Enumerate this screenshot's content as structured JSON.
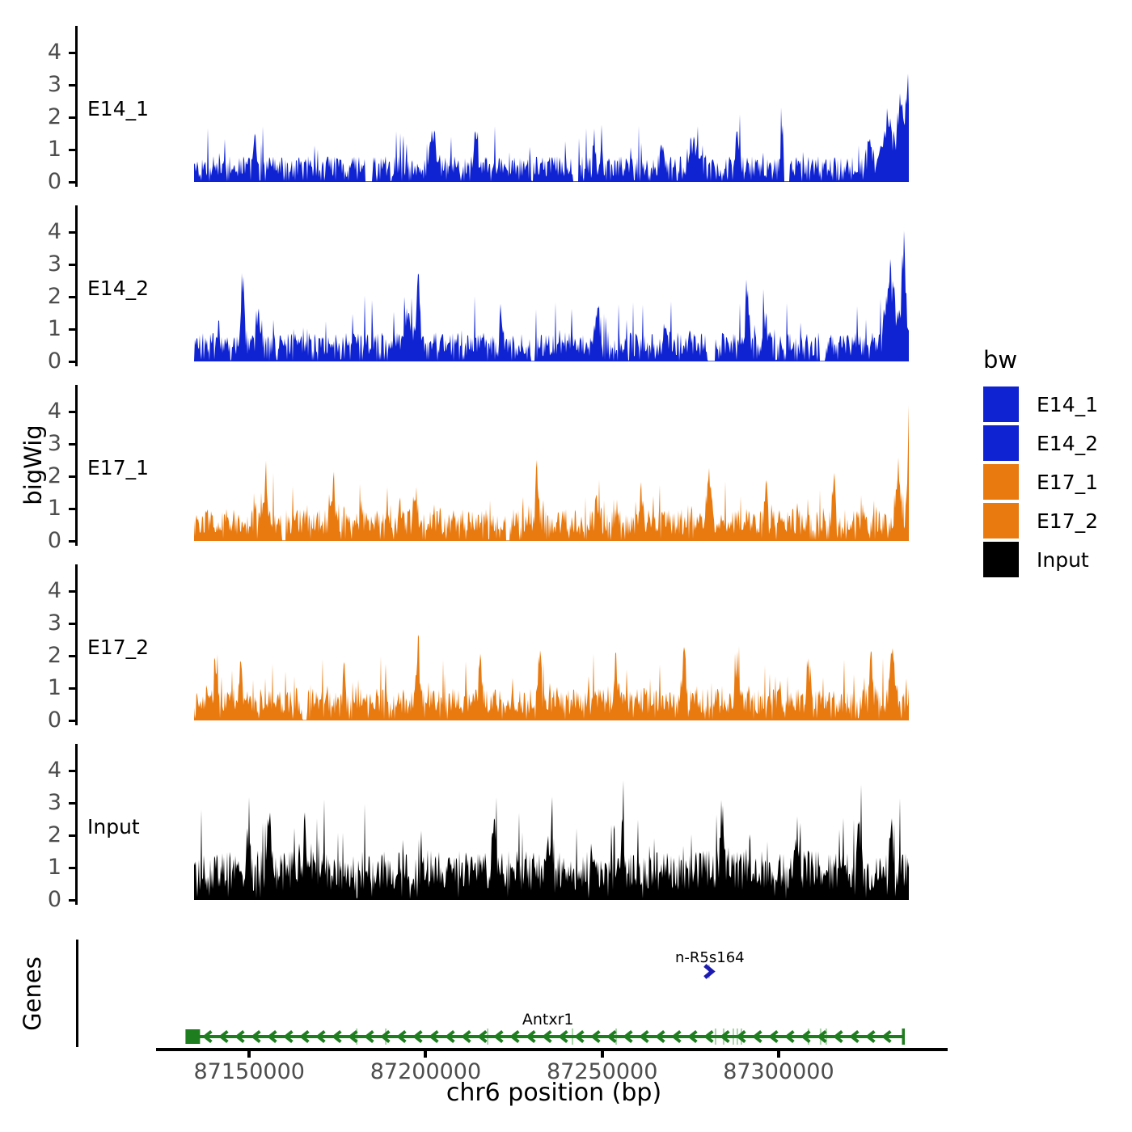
{
  "labels": {
    "y_axis": "bigWig",
    "x_axis": "chr6 position (bp)",
    "genes_axis": "Genes"
  },
  "legend": {
    "title": "bw",
    "items": [
      {
        "label": "E14_1",
        "color": "#0f23d2"
      },
      {
        "label": "E14_2",
        "color": "#0f23d2"
      },
      {
        "label": "E17_1",
        "color": "#e87a10"
      },
      {
        "label": "E17_2",
        "color": "#e87a10"
      },
      {
        "label": "Input",
        "color": "#000000"
      }
    ]
  },
  "colors": {
    "axis": "#000000",
    "tick_text": "#4d4d4d",
    "gene_green": "#1e7d1e",
    "exon_light_green": "#aad4aa",
    "gene_navy": "#1b1bb0",
    "background": "#ffffff"
  },
  "chart_data": {
    "type": "area",
    "title": "",
    "xlabel": "chr6 position (bp)",
    "ylabel": "bigWig",
    "x_domain": [
      87123600,
      87347900
    ],
    "signal_x_range": [
      87134350,
      87337150
    ],
    "x_ticks": [
      {
        "pos": 87150000,
        "label": "87150000"
      },
      {
        "pos": 87200000,
        "label": "87200000"
      },
      {
        "pos": 87250000,
        "label": "87250000"
      },
      {
        "pos": 87300000,
        "label": "87300000"
      }
    ],
    "y_ticks": [
      0,
      1,
      2,
      3,
      4
    ],
    "ylim": [
      0,
      4.7
    ],
    "grid": false,
    "legend_position": "right",
    "tracks": [
      {
        "name": "E14_1",
        "color": "#0f23d2",
        "ymax": 4.45,
        "seed": 42,
        "base": 0.8,
        "dip_prob": 0.12,
        "spike_prob": 0.1,
        "spike_max": 1.2,
        "peak_value": 4.3,
        "features": [
          {
            "p": 0.085,
            "h": 1.0,
            "w": 2
          },
          {
            "p": 0.335,
            "h": 1.0,
            "w": 5
          },
          {
            "p": 0.395,
            "h": 1.6,
            "w": 2
          },
          {
            "p": 0.56,
            "h": 1.1,
            "w": 2
          },
          {
            "p": 0.655,
            "h": 1.2,
            "w": 2
          },
          {
            "p": 0.7,
            "h": 1.0,
            "w": 6
          },
          {
            "p": 0.76,
            "h": 1.3,
            "w": 2
          },
          {
            "p": 0.823,
            "h": 1.1,
            "w": 2
          },
          {
            "p": 0.945,
            "h": 0.9,
            "w": 3
          },
          {
            "p": 0.972,
            "h": 2.0,
            "w": 6
          },
          {
            "p": 0.988,
            "h": 2.6,
            "w": 3
          },
          {
            "p": 0.998,
            "h": 3.5,
            "w": 2.5
          }
        ],
        "gaps": [
          {
            "p": 0.245,
            "w": 4
          },
          {
            "p": 0.535,
            "w": 3
          },
          {
            "p": 0.83,
            "w": 3
          }
        ]
      },
      {
        "name": "E14_2",
        "color": "#0f23d2",
        "ymax": 4.3,
        "seed": 7,
        "base": 0.9,
        "dip_prob": 0.11,
        "spike_prob": 0.1,
        "spike_max": 1.4,
        "peak_value": 4.1,
        "features": [
          {
            "p": 0.068,
            "h": 2.3,
            "w": 2
          },
          {
            "p": 0.09,
            "h": 1.2,
            "w": 3
          },
          {
            "p": 0.3,
            "h": 1.0,
            "w": 6
          },
          {
            "p": 0.314,
            "h": 2.2,
            "w": 2
          },
          {
            "p": 0.43,
            "h": 1.2,
            "w": 2
          },
          {
            "p": 0.565,
            "h": 1.2,
            "w": 3
          },
          {
            "p": 0.66,
            "h": 1.3,
            "w": 2
          },
          {
            "p": 0.774,
            "h": 2.2,
            "w": 2
          },
          {
            "p": 0.8,
            "h": 1.0,
            "w": 4
          },
          {
            "p": 0.975,
            "h": 2.2,
            "w": 6
          },
          {
            "p": 0.993,
            "h": 3.1,
            "w": 3
          }
        ],
        "gaps": [
          {
            "p": 0.475,
            "w": 2
          },
          {
            "p": 0.725,
            "w": 4
          },
          {
            "p": 0.88,
            "w": 3
          }
        ]
      },
      {
        "name": "E17_1",
        "color": "#e87a10",
        "ymax": 4.6,
        "seed": 13,
        "base": 1.0,
        "dip_prob": 0.06,
        "spike_prob": 0.12,
        "spike_max": 1.2,
        "peak_value": 4.6,
        "features": [
          {
            "p": 0.1,
            "h": 1.3,
            "w": 2
          },
          {
            "p": 0.195,
            "h": 1.5,
            "w": 2
          },
          {
            "p": 0.31,
            "h": 1.3,
            "w": 2
          },
          {
            "p": 0.48,
            "h": 1.7,
            "w": 2
          },
          {
            "p": 0.565,
            "h": 1.3,
            "w": 2
          },
          {
            "p": 0.625,
            "h": 1.5,
            "w": 2
          },
          {
            "p": 0.72,
            "h": 1.5,
            "w": 3
          },
          {
            "p": 0.8,
            "h": 1.3,
            "w": 2
          },
          {
            "p": 0.895,
            "h": 1.4,
            "w": 2
          },
          {
            "p": 0.985,
            "h": 1.8,
            "w": 3
          },
          {
            "p": 1.0,
            "h": 4.0,
            "w": 1.8
          }
        ],
        "gaps": [
          {
            "p": 0.126,
            "w": 2
          },
          {
            "p": 0.44,
            "w": 2
          }
        ]
      },
      {
        "name": "E17_2",
        "color": "#e87a10",
        "ymax": 4.0,
        "seed": 99,
        "base": 1.0,
        "dip_prob": 0.06,
        "spike_prob": 0.12,
        "spike_max": 1.4,
        "peak_value": 3.7,
        "features": [
          {
            "p": 0.03,
            "h": 1.5,
            "w": 2
          },
          {
            "p": 0.065,
            "h": 1.5,
            "w": 2
          },
          {
            "p": 0.21,
            "h": 1.3,
            "w": 2
          },
          {
            "p": 0.313,
            "h": 2.6,
            "w": 2
          },
          {
            "p": 0.4,
            "h": 1.5,
            "w": 2
          },
          {
            "p": 0.484,
            "h": 1.8,
            "w": 2
          },
          {
            "p": 0.59,
            "h": 1.4,
            "w": 2
          },
          {
            "p": 0.685,
            "h": 1.8,
            "w": 2
          },
          {
            "p": 0.76,
            "h": 1.4,
            "w": 2
          },
          {
            "p": 0.86,
            "h": 1.3,
            "w": 2
          },
          {
            "p": 0.947,
            "h": 1.9,
            "w": 2
          },
          {
            "p": 0.977,
            "h": 1.9,
            "w": 3
          }
        ],
        "gaps": [
          {
            "p": 0.155,
            "w": 2
          }
        ]
      },
      {
        "name": "Input",
        "color": "#000000",
        "ymax": 4.55,
        "seed": 5,
        "base": 1.55,
        "dip_prob": 0.03,
        "spike_prob": 0.13,
        "spike_max": 1.8,
        "peak_value": 4.5,
        "features": [
          {
            "p": 0.075,
            "h": 1.5,
            "w": 2
          },
          {
            "p": 0.105,
            "h": 2.6,
            "w": 1.8
          },
          {
            "p": 0.155,
            "h": 1.5,
            "w": 2
          },
          {
            "p": 0.42,
            "h": 2.0,
            "w": 2
          },
          {
            "p": 0.5,
            "h": 1.6,
            "w": 2
          },
          {
            "p": 0.6,
            "h": 1.8,
            "w": 2
          },
          {
            "p": 0.738,
            "h": 1.7,
            "w": 2
          },
          {
            "p": 0.845,
            "h": 1.3,
            "w": 2
          },
          {
            "p": 0.93,
            "h": 2.2,
            "w": 2
          },
          {
            "p": 0.975,
            "h": 1.6,
            "w": 2
          }
        ],
        "gaps": []
      }
    ],
    "genes": {
      "track_label": "Genes",
      "items": [
        {
          "name": "n-R5s164",
          "strand": "+",
          "pos": 87280500,
          "color": "#1b1bb0"
        },
        {
          "name": "Antxr1",
          "strand": "-",
          "start": 87134000,
          "end": 87335300,
          "color": "#1e7d1e",
          "exon_marks": [
            87180459,
            87188700,
            87217560,
            87241600,
            87253970,
            87282130,
            87284420,
            87287170,
            87288310,
            87289460,
            87308470,
            87311900,
            87313500
          ]
        }
      ]
    }
  }
}
